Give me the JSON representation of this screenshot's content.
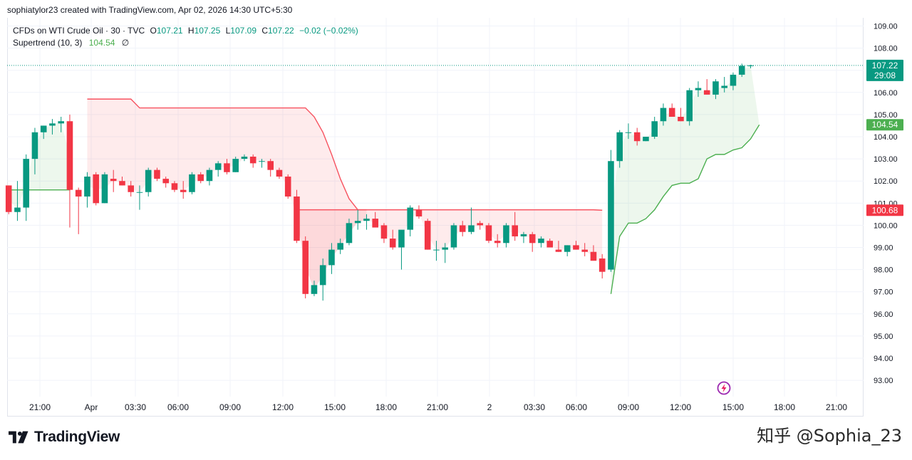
{
  "header": {
    "text": "sophiatylor23 created with TradingView.com, Apr 02, 2026 14:30 UTC+5:30"
  },
  "legend": {
    "symbol": "CFDs on WTI Crude Oil · 30 · TVC",
    "open_label": "O",
    "open": "107.21",
    "high_label": "H",
    "high": "107.25",
    "low_label": "L",
    "low": "107.09",
    "close_label": "C",
    "close": "107.22",
    "change": "−0.02 (−0.02%)",
    "indicator": "Supertrend (10, 3)",
    "indicator_value": "104.54",
    "indicator_icon": "∅"
  },
  "colors": {
    "up": "#089981",
    "down": "#f23645",
    "st_up": "#4caf50",
    "st_down": "#f7525f"
  },
  "badges": {
    "last_price": "107.22",
    "countdown": "29:08",
    "st_up_value": "104.54",
    "st_down_value": "100.68"
  },
  "brand": {
    "name": "TradingView"
  },
  "watermark": {
    "text": "知乎 @Sophia_23"
  },
  "chart_data": {
    "type": "candlestick",
    "ylim": [
      92.5,
      109.5
    ],
    "y_ticks": [
      "109.00",
      "108.00",
      "107.00",
      "106.00",
      "105.00",
      "104.00",
      "103.00",
      "102.00",
      "101.00",
      "100.00",
      "99.00",
      "98.00",
      "97.00",
      "96.00",
      "95.00",
      "94.00",
      "93.00"
    ],
    "x_ticks": [
      "21:00",
      "Apr",
      "03:30",
      "06:00",
      "09:00",
      "12:00",
      "15:00",
      "18:00",
      "21:00",
      "2",
      "03:30",
      "06:00",
      "09:00",
      "12:00",
      "15:00",
      "18:00",
      "21:00"
    ],
    "candles": [
      [
        101.8,
        101.8,
        100.5,
        100.6
      ],
      [
        100.6,
        102.0,
        100.2,
        100.8
      ],
      [
        100.8,
        103.2,
        100.2,
        103.0
      ],
      [
        103.0,
        104.4,
        102.3,
        104.2
      ],
      [
        104.2,
        104.5,
        103.9,
        104.5
      ],
      [
        104.5,
        104.8,
        104.1,
        104.6
      ],
      [
        104.6,
        104.9,
        104.2,
        104.7
      ],
      [
        104.7,
        105.0,
        99.9,
        101.6
      ],
      [
        101.6,
        101.7,
        99.6,
        101.3
      ],
      [
        101.3,
        102.4,
        100.8,
        102.2
      ],
      [
        102.3,
        102.4,
        100.9,
        101.0
      ],
      [
        101.0,
        102.4,
        101.0,
        102.3
      ],
      [
        102.1,
        102.5,
        101.5,
        102.0
      ],
      [
        102.0,
        102.2,
        101.8,
        101.8
      ],
      [
        101.8,
        102.0,
        101.3,
        101.5
      ],
      [
        101.5,
        101.8,
        100.7,
        101.5
      ],
      [
        101.5,
        102.6,
        101.3,
        102.5
      ],
      [
        102.5,
        102.6,
        102.0,
        102.1
      ],
      [
        102.1,
        102.2,
        101.7,
        101.9
      ],
      [
        101.9,
        102.0,
        101.5,
        101.6
      ],
      [
        101.6,
        102.0,
        101.2,
        101.5
      ],
      [
        101.5,
        102.4,
        101.4,
        102.3
      ],
      [
        102.3,
        102.4,
        101.9,
        102.0
      ],
      [
        102.0,
        102.6,
        101.8,
        102.5
      ],
      [
        102.5,
        102.9,
        102.2,
        102.8
      ],
      [
        102.8,
        103.0,
        102.3,
        102.4
      ],
      [
        102.4,
        103.1,
        102.4,
        103.0
      ],
      [
        103.0,
        103.2,
        102.9,
        103.1
      ],
      [
        103.1,
        103.2,
        102.6,
        102.8
      ],
      [
        102.9,
        103.0,
        102.6,
        102.9
      ],
      [
        102.9,
        103.0,
        102.2,
        102.5
      ],
      [
        102.5,
        102.6,
        102.1,
        102.2
      ],
      [
        102.2,
        102.3,
        101.2,
        101.3
      ],
      [
        101.3,
        101.6,
        99.2,
        99.3
      ],
      [
        99.3,
        99.5,
        96.7,
        96.9
      ],
      [
        96.9,
        97.5,
        96.8,
        97.3
      ],
      [
        97.3,
        98.5,
        96.6,
        98.2
      ],
      [
        98.2,
        99.2,
        97.8,
        98.9
      ],
      [
        98.9,
        99.4,
        98.7,
        99.2
      ],
      [
        99.2,
        100.3,
        99.1,
        100.1
      ],
      [
        100.1,
        100.7,
        99.8,
        100.2
      ],
      [
        100.2,
        100.5,
        99.8,
        100.3
      ],
      [
        100.3,
        100.6,
        99.9,
        99.9
      ],
      [
        100.0,
        100.1,
        99.2,
        99.4
      ],
      [
        99.4,
        99.8,
        98.9,
        99.0
      ],
      [
        99.0,
        99.7,
        98.0,
        99.8
      ],
      [
        99.8,
        100.9,
        99.5,
        100.8
      ],
      [
        100.7,
        100.9,
        100.3,
        100.4
      ],
      [
        100.2,
        100.3,
        98.9,
        98.9
      ],
      [
        98.9,
        99.3,
        98.4,
        98.9
      ],
      [
        98.9,
        99.2,
        98.3,
        99.0
      ],
      [
        99.0,
        100.1,
        98.9,
        100.0
      ],
      [
        100.0,
        100.2,
        99.5,
        99.7
      ],
      [
        99.7,
        100.8,
        99.6,
        100.0
      ],
      [
        100.1,
        100.2,
        99.8,
        100.0
      ],
      [
        100.0,
        100.1,
        99.2,
        99.3
      ],
      [
        99.3,
        99.6,
        99.0,
        99.2
      ],
      [
        99.2,
        100.1,
        99.0,
        100.0
      ],
      [
        100.0,
        100.6,
        99.3,
        99.5
      ],
      [
        99.5,
        99.7,
        99.2,
        99.6
      ],
      [
        99.6,
        99.7,
        98.8,
        99.2
      ],
      [
        99.2,
        99.5,
        99.0,
        99.4
      ],
      [
        99.3,
        99.4,
        99.0,
        99.0
      ],
      [
        98.9,
        99.3,
        98.8,
        98.8
      ],
      [
        98.8,
        99.1,
        98.6,
        99.1
      ],
      [
        99.1,
        99.3,
        98.9,
        98.9
      ],
      [
        98.9,
        99.2,
        98.6,
        98.8
      ],
      [
        98.8,
        99.1,
        98.5,
        98.4
      ],
      [
        98.5,
        98.7,
        97.6,
        97.9
      ],
      [
        98.0,
        103.4,
        97.9,
        102.9
      ],
      [
        102.9,
        104.3,
        102.6,
        104.2
      ],
      [
        104.2,
        104.6,
        103.9,
        104.2
      ],
      [
        104.2,
        104.4,
        103.6,
        103.8
      ],
      [
        103.8,
        104.0,
        103.8,
        104.0
      ],
      [
        104.0,
        104.9,
        103.9,
        104.7
      ],
      [
        104.7,
        105.5,
        104.5,
        105.3
      ],
      [
        105.3,
        105.5,
        104.9,
        104.9
      ],
      [
        104.9,
        105.3,
        104.7,
        104.7
      ],
      [
        104.7,
        106.2,
        104.5,
        106.1
      ],
      [
        106.1,
        106.5,
        105.8,
        106.2
      ],
      [
        106.1,
        106.6,
        105.9,
        105.9
      ],
      [
        105.9,
        106.6,
        105.7,
        106.5
      ],
      [
        106.2,
        106.7,
        106.0,
        106.3
      ],
      [
        106.3,
        106.9,
        106.1,
        106.8
      ],
      [
        106.8,
        107.3,
        106.7,
        107.2
      ],
      [
        107.21,
        107.25,
        107.09,
        107.22
      ]
    ],
    "supertrend_up_1": [
      101.6,
      101.6,
      101.6,
      101.6,
      101.6,
      101.6,
      101.6,
      101.6
    ],
    "supertrend_down_1": [
      105.7,
      105.7,
      105.7,
      105.7,
      105.7,
      105.7,
      105.3,
      105.3,
      105.3,
      105.3,
      105.3,
      105.3,
      105.3,
      105.3,
      105.3,
      105.3,
      105.3,
      105.3,
      105.3,
      105.3,
      105.3,
      105.3,
      105.3,
      105.3,
      105.3,
      105.3,
      104.9,
      104.2,
      103.2,
      102.1,
      101.2,
      100.7,
      100.7
    ],
    "supertrend_down_2": [
      100.7,
      100.7,
      100.7,
      100.7,
      100.7,
      100.7,
      100.7,
      100.7,
      100.7,
      100.7,
      100.7,
      100.7,
      100.7,
      100.7,
      100.7,
      100.7,
      100.7,
      100.7,
      100.7,
      100.7,
      100.7,
      100.7,
      100.7,
      100.7,
      100.7,
      100.7,
      100.7,
      100.7,
      100.7,
      100.7,
      100.7,
      100.7,
      100.7,
      100.7,
      100.7,
      100.68
    ],
    "supertrend_up_2": [
      96.9,
      99.5,
      100.1,
      100.1,
      100.3,
      100.7,
      101.3,
      101.8,
      101.9,
      101.9,
      102.1,
      103.0,
      103.2,
      103.2,
      103.4,
      103.5,
      103.9,
      104.54
    ]
  }
}
